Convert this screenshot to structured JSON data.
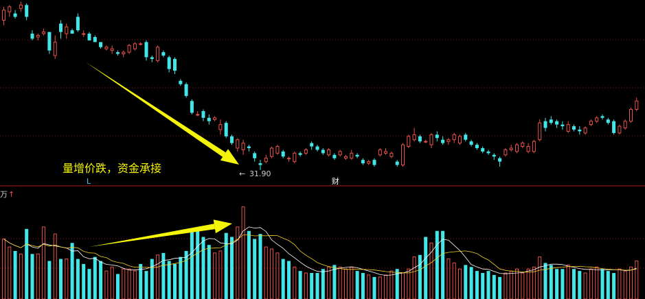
{
  "chart_data": [
    {
      "type": "candlestick",
      "title": "",
      "annotation": "量增价跌，资金承接",
      "low_marker_label": "31.90",
      "low_marker_symbol": "←",
      "low_value": 31.9,
      "event_markers": [
        {
          "label": "L",
          "index": 15,
          "color": "#4ecbe0"
        },
        {
          "label": "财",
          "index": 58,
          "color": "#ffffff"
        }
      ],
      "colors": {
        "up": "#e8534b",
        "down": "#43e6e8",
        "arrow": "#f5f50a",
        "grid": "#8a1515"
      },
      "ylim": [
        31.0,
        42.0
      ],
      "candles": [
        [
          40.8,
          41.6,
          40.5,
          41.4
        ],
        [
          41.3,
          41.7,
          41.0,
          41.6
        ],
        [
          41.2,
          41.4,
          40.9,
          41.0
        ],
        [
          41.5,
          41.9,
          41.3,
          41.7
        ],
        [
          41.7,
          41.8,
          40.8,
          41.0
        ],
        [
          40.0,
          40.2,
          39.6,
          39.7
        ],
        [
          39.8,
          40.0,
          39.6,
          39.9
        ],
        [
          40.0,
          40.3,
          39.9,
          40.1
        ],
        [
          40.1,
          40.1,
          38.8,
          39.0
        ],
        [
          38.7,
          39.9,
          38.5,
          39.5
        ],
        [
          40.6,
          40.8,
          39.7,
          40.1
        ],
        [
          40.0,
          40.6,
          39.7,
          40.4
        ],
        [
          40.2,
          40.3,
          40.0,
          40.0
        ],
        [
          41.0,
          41.2,
          40.1,
          40.2
        ],
        [
          40.0,
          40.2,
          39.8,
          40.0
        ],
        [
          40.0,
          40.1,
          39.6,
          39.6
        ],
        [
          39.8,
          39.9,
          39.5,
          39.5
        ],
        [
          39.5,
          39.5,
          39.1,
          39.2
        ],
        [
          39.1,
          39.3,
          39.0,
          39.2
        ],
        [
          39.0,
          39.3,
          38.8,
          39.1
        ],
        [
          38.9,
          39.0,
          38.7,
          38.8
        ],
        [
          38.8,
          39.0,
          38.6,
          38.9
        ],
        [
          38.9,
          39.4,
          38.8,
          39.3
        ],
        [
          39.1,
          39.5,
          39.0,
          39.4
        ],
        [
          39.4,
          39.5,
          39.3,
          39.4
        ],
        [
          39.5,
          39.6,
          38.4,
          38.6
        ],
        [
          38.6,
          38.7,
          38.3,
          38.5
        ],
        [
          38.4,
          39.3,
          38.3,
          39.2
        ],
        [
          38.9,
          39.0,
          38.6,
          38.7
        ],
        [
          38.6,
          38.7,
          37.7,
          37.9
        ],
        [
          38.5,
          38.6,
          37.6,
          37.8
        ],
        [
          37.2,
          37.3,
          36.9,
          37.0
        ],
        [
          37.0,
          37.1,
          36.2,
          36.3
        ],
        [
          36.0,
          36.1,
          35.2,
          35.3
        ],
        [
          35.2,
          35.4,
          35.1,
          35.2
        ],
        [
          35.4,
          35.5,
          34.8,
          35.0
        ],
        [
          35.0,
          35.2,
          34.6,
          34.8
        ],
        [
          34.9,
          35.1,
          34.8,
          35.0
        ],
        [
          34.3,
          34.9,
          34.0,
          34.6
        ],
        [
          34.7,
          34.8,
          33.8,
          33.9
        ],
        [
          33.9,
          34.0,
          33.4,
          33.5
        ],
        [
          33.2,
          33.8,
          33.0,
          33.7
        ],
        [
          33.1,
          33.7,
          32.8,
          33.5
        ],
        [
          33.3,
          33.4,
          33.0,
          33.2
        ],
        [
          32.9,
          33.0,
          32.4,
          32.6
        ],
        [
          32.3,
          32.5,
          31.9,
          32.2
        ],
        [
          32.4,
          32.8,
          32.3,
          32.6
        ],
        [
          32.7,
          33.3,
          32.6,
          33.2
        ],
        [
          32.9,
          33.4,
          32.8,
          33.3
        ],
        [
          33.0,
          33.1,
          32.6,
          32.7
        ],
        [
          32.6,
          32.7,
          32.4,
          32.6
        ],
        [
          32.4,
          33.0,
          32.3,
          32.9
        ],
        [
          32.9,
          33.0,
          32.7,
          32.8
        ],
        [
          32.9,
          33.2,
          32.8,
          33.1
        ],
        [
          33.5,
          33.6,
          33.1,
          33.3
        ],
        [
          33.3,
          33.4,
          33.0,
          33.1
        ],
        [
          33.1,
          33.2,
          32.8,
          32.9
        ],
        [
          32.8,
          33.2,
          32.7,
          33.1
        ],
        [
          32.8,
          32.9,
          32.5,
          32.6
        ],
        [
          32.8,
          33.1,
          32.7,
          33.0
        ],
        [
          32.6,
          32.8,
          32.5,
          32.7
        ],
        [
          32.6,
          33.1,
          32.5,
          32.9
        ],
        [
          32.8,
          32.9,
          32.6,
          32.7
        ],
        [
          32.5,
          32.6,
          32.2,
          32.3
        ],
        [
          32.3,
          32.5,
          32.2,
          32.4
        ],
        [
          32.5,
          32.6,
          32.1,
          32.2
        ],
        [
          32.8,
          33.2,
          32.7,
          33.1
        ],
        [
          32.9,
          33.2,
          32.8,
          33.0
        ],
        [
          32.7,
          33.0,
          32.6,
          32.9
        ],
        [
          32.4,
          32.5,
          32.1,
          32.2
        ],
        [
          32.2,
          33.5,
          32.1,
          33.4
        ],
        [
          33.3,
          34.0,
          33.2,
          33.9
        ],
        [
          33.7,
          34.4,
          33.6,
          34.0
        ],
        [
          33.9,
          34.0,
          33.5,
          33.6
        ],
        [
          33.6,
          33.7,
          33.5,
          33.6
        ],
        [
          33.4,
          34.1,
          33.2,
          34.0
        ],
        [
          34.0,
          34.2,
          33.6,
          33.8
        ],
        [
          33.7,
          33.9,
          33.4,
          33.5
        ],
        [
          33.6,
          33.8,
          33.4,
          33.7
        ],
        [
          33.7,
          34.1,
          33.5,
          34.0
        ],
        [
          33.5,
          34.0,
          33.4,
          33.9
        ],
        [
          34.0,
          34.1,
          33.6,
          33.7
        ],
        [
          33.6,
          33.7,
          33.3,
          33.4
        ],
        [
          33.4,
          33.5,
          33.1,
          33.2
        ],
        [
          33.2,
          33.3,
          32.9,
          33.0
        ],
        [
          33.0,
          33.1,
          32.8,
          32.9
        ],
        [
          32.8,
          32.9,
          32.5,
          32.7
        ],
        [
          32.6,
          32.7,
          32.1,
          32.4
        ],
        [
          32.8,
          33.2,
          32.7,
          33.1
        ],
        [
          33.1,
          33.4,
          33.0,
          33.2
        ],
        [
          33.0,
          33.5,
          32.9,
          33.4
        ],
        [
          33.3,
          33.6,
          33.2,
          33.5
        ],
        [
          33.0,
          33.5,
          32.9,
          33.3
        ],
        [
          33.0,
          33.7,
          32.9,
          33.6
        ],
        [
          33.7,
          34.9,
          33.6,
          34.7
        ],
        [
          34.8,
          35.0,
          34.2,
          34.4
        ],
        [
          34.9,
          35.1,
          34.6,
          34.7
        ],
        [
          34.8,
          34.9,
          34.4,
          34.6
        ],
        [
          34.6,
          34.8,
          34.3,
          34.5
        ],
        [
          34.2,
          34.8,
          34.1,
          34.6
        ],
        [
          34.5,
          34.6,
          34.2,
          34.3
        ],
        [
          34.3,
          34.5,
          34.0,
          34.2
        ],
        [
          34.1,
          34.5,
          34.0,
          34.4
        ],
        [
          34.6,
          34.9,
          34.5,
          34.8
        ],
        [
          34.8,
          35.1,
          34.7,
          35.0
        ],
        [
          35.1,
          35.2,
          34.9,
          35.0
        ],
        [
          34.9,
          35.0,
          34.6,
          34.7
        ],
        [
          34.8,
          34.9,
          34.0,
          34.1
        ],
        [
          34.1,
          34.6,
          34.0,
          34.5
        ],
        [
          34.4,
          34.9,
          34.3,
          34.8
        ],
        [
          34.8,
          35.6,
          34.7,
          35.5
        ],
        [
          35.5,
          36.2,
          35.4,
          36.0
        ]
      ]
    },
    {
      "type": "bar",
      "unit_label": "万",
      "unit_arrow": "↑",
      "ylim": [
        0,
        100
      ],
      "volumes": [
        60,
        52,
        48,
        45,
        70,
        45,
        45,
        72,
        38,
        65,
        40,
        40,
        56,
        40,
        35,
        30,
        42,
        38,
        28,
        32,
        25,
        30,
        30,
        28,
        35,
        28,
        40,
        44,
        46,
        38,
        35,
        42,
        48,
        68,
        70,
        62,
        54,
        46,
        48,
        66,
        62,
        72,
        92,
        68,
        60,
        65,
        52,
        50,
        46,
        40,
        38,
        32,
        28,
        26,
        26,
        26,
        30,
        32,
        34,
        32,
        30,
        32,
        28,
        26,
        24,
        22,
        22,
        24,
        28,
        30,
        26,
        30,
        42,
        44,
        62,
        56,
        68,
        68,
        40,
        36,
        30,
        34,
        32,
        28,
        26,
        28,
        24,
        22,
        26,
        28,
        30,
        26,
        30,
        32,
        42,
        36,
        34,
        30,
        30,
        34,
        30,
        28,
        26,
        30,
        32,
        30,
        28,
        26,
        30,
        28,
        32,
        38
      ],
      "volume_up": [
        true,
        true,
        false,
        true,
        false,
        false,
        true,
        true,
        false,
        true,
        false,
        true,
        false,
        false,
        false,
        false,
        false,
        false,
        true,
        true,
        false,
        true,
        true,
        true,
        false,
        false,
        false,
        true,
        false,
        false,
        false,
        false,
        false,
        false,
        false,
        false,
        false,
        true,
        true,
        false,
        false,
        true,
        true,
        false,
        false,
        false,
        true,
        true,
        true,
        false,
        false,
        true,
        false,
        true,
        false,
        false,
        false,
        true,
        false,
        true,
        true,
        true,
        false,
        false,
        true,
        false,
        true,
        true,
        true,
        false,
        true,
        true,
        true,
        false,
        false,
        true,
        false,
        false,
        true,
        true,
        true,
        false,
        false,
        false,
        false,
        false,
        false,
        false,
        true,
        true,
        true,
        true,
        true,
        true,
        true,
        false,
        false,
        false,
        false,
        true,
        false,
        false,
        true,
        true,
        true,
        false,
        false,
        false,
        true,
        true,
        true,
        true
      ]
    }
  ]
}
